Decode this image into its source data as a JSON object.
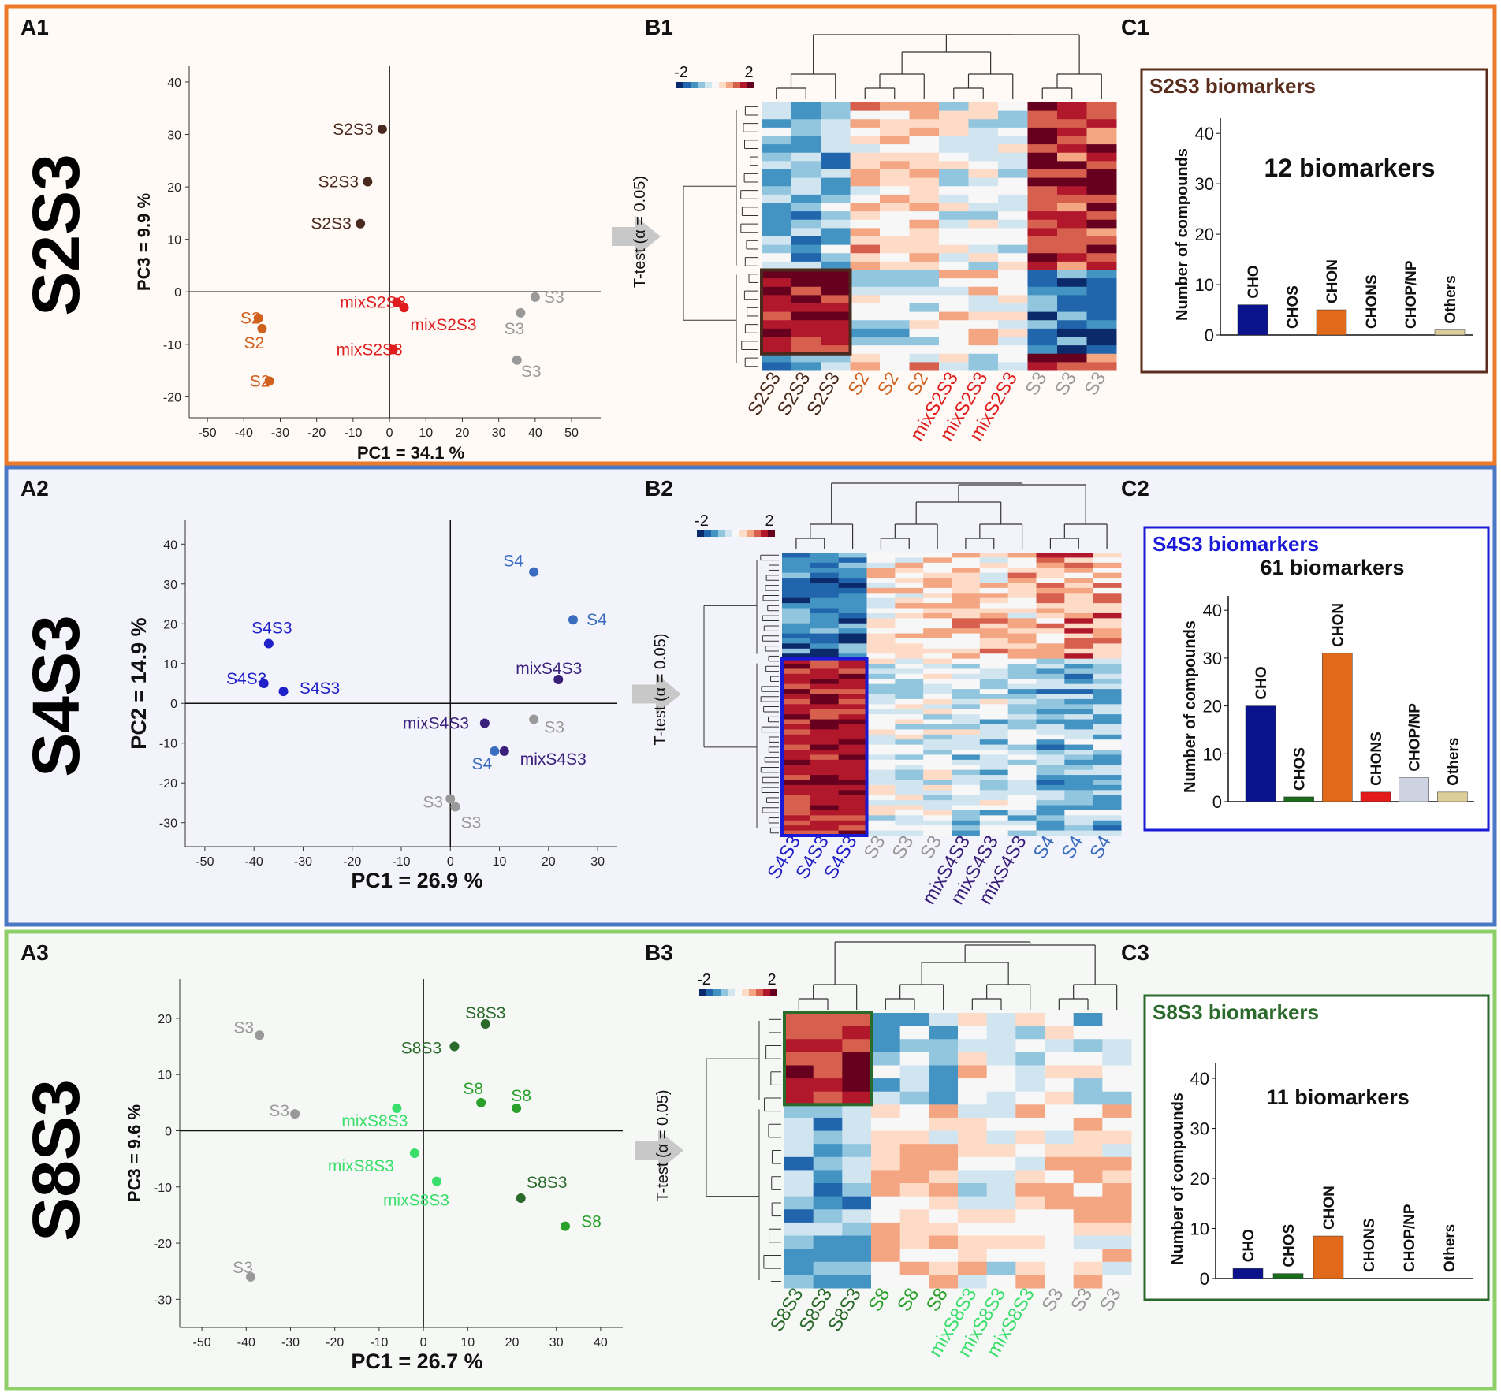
{
  "heatmap_scale": {
    "min_label": "-2",
    "max_label": "2"
  },
  "panels": [
    {
      "id": "S2S3",
      "vertical_title": "S2S3",
      "border_color": "#ec7a2a",
      "bg_color": "#fffaf6",
      "labels": {
        "a": "A1",
        "b": "B1",
        "c": "C1"
      },
      "ttest_label": "T-test (α = 0.05)",
      "chart_data": [
        {
          "type": "scatter",
          "xlabel": "PC1 = 34.1 %",
          "ylabel": "PC3 = 9.9 %",
          "xlim": [
            -55,
            58
          ],
          "ylim": [
            -24,
            43
          ],
          "xticks": [
            -50,
            -40,
            -30,
            -20,
            -10,
            0,
            10,
            20,
            30,
            40,
            50
          ],
          "yticks": [
            -20,
            -10,
            0,
            10,
            20,
            30,
            40
          ],
          "points": [
            {
              "x": -2,
              "y": 31,
              "label": "S2S3",
              "color": "#4a2a1e",
              "lx": -37,
              "ly": 0
            },
            {
              "x": -6,
              "y": 21,
              "label": "S2S3",
              "color": "#4a2a1e",
              "lx": -37,
              "ly": 0
            },
            {
              "x": -8,
              "y": 13,
              "label": "S2S3",
              "color": "#4a2a1e",
              "lx": -37,
              "ly": 0
            },
            {
              "x": -36,
              "y": -5,
              "label": "S2",
              "color": "#d0601e",
              "lx": -10,
              "ly": 0
            },
            {
              "x": -35,
              "y": -7,
              "label": "S2",
              "color": "#d0601e",
              "lx": -10,
              "ly": 18
            },
            {
              "x": -33,
              "y": -17,
              "label": "S2",
              "color": "#d0601e",
              "lx": -12,
              "ly": 0
            },
            {
              "x": 2,
              "y": -2,
              "label": "mixS2S3",
              "color": "#e01d1d",
              "lx": -30,
              "ly": 0
            },
            {
              "x": 4,
              "y": -3,
              "label": "mixS2S3",
              "color": "#e01d1d",
              "lx": 50,
              "ly": 22
            },
            {
              "x": 1,
              "y": -11,
              "label": "mixS2S3",
              "color": "#e01d1d",
              "lx": -30,
              "ly": 0
            },
            {
              "x": 40,
              "y": -1,
              "label": "S3",
              "color": "#999999",
              "lx": 24,
              "ly": 0
            },
            {
              "x": 36,
              "y": -4,
              "label": "S3",
              "color": "#999999",
              "lx": -8,
              "ly": 20
            },
            {
              "x": 35,
              "y": -13,
              "label": "S3",
              "color": "#999999",
              "lx": 18,
              "ly": 14
            }
          ]
        },
        {
          "type": "heatmap",
          "rows": 32,
          "columns": [
            "S2S3",
            "S2S3",
            "S2S3",
            "S2",
            "S2",
            "S2",
            "mixS2S3",
            "mixS2S3",
            "mixS2S3",
            "S3",
            "S3",
            "S3"
          ],
          "column_colors": [
            "#4a2a1e",
            "#4a2a1e",
            "#4a2a1e",
            "#d0601e",
            "#d0601e",
            "#d0601e",
            "#e01d1d",
            "#e01d1d",
            "#e01d1d",
            "#999999",
            "#999999",
            "#999999"
          ],
          "highlight": {
            "row_start": 20,
            "row_end": 29,
            "col_start": 0,
            "col_end": 2,
            "color": "#4a2a1e"
          }
        },
        {
          "type": "bar",
          "box_title": "S2S3 biomarkers",
          "title_color": "#5a2d1c",
          "box_border": "#5a2d1c",
          "annotation": "12 biomarkers",
          "ylabel": "Number of compounds",
          "ylim": [
            0,
            43
          ],
          "yticks": [
            0,
            10,
            20,
            30,
            40
          ],
          "categories": [
            "CHO",
            "CHOS",
            "CHON",
            "CHONS",
            "CHOP/NP",
            "Others"
          ],
          "values": [
            6,
            0,
            5,
            0,
            0,
            1
          ],
          "colors": [
            "#0a138c",
            "#1a6b1a",
            "#e06a1a",
            "#e21a1a",
            "#cdd3e0",
            "#dccd9a"
          ]
        }
      ]
    },
    {
      "id": "S4S3",
      "vertical_title": "S4S3",
      "border_color": "#4a78c4",
      "bg_color": "#f3f3fb",
      "labels": {
        "a": "A2",
        "b": "B2",
        "c": "C2"
      },
      "ttest_label": "T-test (α = 0.05)",
      "chart_data": [
        {
          "type": "scatter",
          "xlabel": "PC1 = 26.9 %",
          "ylabel": "PC2 = 14.9 %",
          "xlim": [
            -54,
            34
          ],
          "ylim": [
            -36,
            46
          ],
          "xticks": [
            -50,
            -40,
            -30,
            -20,
            -10,
            0,
            10,
            20,
            30
          ],
          "yticks": [
            -30,
            -20,
            -10,
            0,
            10,
            20,
            30,
            40
          ],
          "points": [
            {
              "x": -37,
              "y": 15,
              "label": "S4S3",
              "color": "#2020c8",
              "lx": 4,
              "ly": -20
            },
            {
              "x": -38,
              "y": 5,
              "label": "S4S3",
              "color": "#2020c8",
              "lx": -22,
              "ly": -6
            },
            {
              "x": -34,
              "y": 3,
              "label": "S4S3",
              "color": "#2020c8",
              "lx": 46,
              "ly": -4
            },
            {
              "x": 17,
              "y": 33,
              "label": "S4",
              "color": "#3a6cc0",
              "lx": -26,
              "ly": -14
            },
            {
              "x": 25,
              "y": 21,
              "label": "S4",
              "color": "#3a6cc0",
              "lx": 30,
              "ly": 0
            },
            {
              "x": 22,
              "y": 6,
              "label": "mixS4S3",
              "color": "#3a207a",
              "lx": -12,
              "ly": -14
            },
            {
              "x": 7,
              "y": -5,
              "label": "mixS4S3",
              "color": "#3a207a",
              "lx": -62,
              "ly": 0
            },
            {
              "x": 11,
              "y": -12,
              "label": "mixS4S3",
              "color": "#3a207a",
              "lx": 62,
              "ly": 10
            },
            {
              "x": 9,
              "y": -12,
              "label": "S4",
              "color": "#3a6cc0",
              "lx": -16,
              "ly": 16
            },
            {
              "x": 17,
              "y": -4,
              "label": "S3",
              "color": "#999999",
              "lx": 26,
              "ly": 10
            },
            {
              "x": 0,
              "y": -24,
              "label": "S3",
              "color": "#999999",
              "lx": -22,
              "ly": 4
            },
            {
              "x": 1,
              "y": -26,
              "label": "S3",
              "color": "#999999",
              "lx": 20,
              "ly": 20
            }
          ]
        },
        {
          "type": "heatmap",
          "rows": 56,
          "columns": [
            "S4S3",
            "S4S3",
            "S4S3",
            "S3",
            "S3",
            "S3",
            "mixS4S3",
            "mixS4S3",
            "mixS4S3",
            "S4",
            "S4",
            "S4"
          ],
          "column_colors": [
            "#2020c8",
            "#2020c8",
            "#2020c8",
            "#999999",
            "#999999",
            "#999999",
            "#3a207a",
            "#3a207a",
            "#3a207a",
            "#3a6cc0",
            "#3a6cc0",
            "#3a6cc0"
          ],
          "highlight": {
            "row_start": 21,
            "row_end": 55,
            "col_start": 0,
            "col_end": 2,
            "color": "#1a1ad6"
          }
        },
        {
          "type": "bar",
          "box_title": "S4S3 biomarkers",
          "title_color": "#1a1ad6",
          "box_border": "#1a1ad6",
          "annotation": "61 biomarkers",
          "ylabel": "Number of compounds",
          "ylim": [
            0,
            43
          ],
          "yticks": [
            0,
            10,
            20,
            30,
            40
          ],
          "categories": [
            "CHO",
            "CHOS",
            "CHON",
            "CHONS",
            "CHOP/NP",
            "Others"
          ],
          "values": [
            20,
            1,
            31,
            2,
            5,
            2
          ],
          "colors": [
            "#0a138c",
            "#1a6b1a",
            "#e06a1a",
            "#e21a1a",
            "#cdd3e0",
            "#dccd9a"
          ]
        }
      ]
    },
    {
      "id": "S8S3",
      "vertical_title": "S8S3",
      "border_color": "#8fcf6a",
      "bg_color": "#f6f8f6",
      "labels": {
        "a": "A3",
        "b": "B3",
        "c": "C3"
      },
      "ttest_label": "T-test (α = 0.05)",
      "chart_data": [
        {
          "type": "scatter",
          "xlabel": "PC1 = 26.7 %",
          "ylabel": "PC3 = 9.6 %",
          "xlim": [
            -55,
            45
          ],
          "ylim": [
            -35,
            27
          ],
          "xticks": [
            -50,
            -40,
            -30,
            -20,
            -10,
            0,
            10,
            20,
            30,
            40
          ],
          "yticks": [
            -30,
            -20,
            -10,
            0,
            10,
            20
          ],
          "points": [
            {
              "x": -37,
              "y": 17,
              "label": "S3",
              "color": "#999999",
              "lx": -20,
              "ly": -10
            },
            {
              "x": -29,
              "y": 3,
              "label": "S3",
              "color": "#999999",
              "lx": -20,
              "ly": -4
            },
            {
              "x": -39,
              "y": -26,
              "label": "S3",
              "color": "#999999",
              "lx": -10,
              "ly": -12
            },
            {
              "x": 14,
              "y": 19,
              "label": "S8S3",
              "color": "#2a6a2a",
              "lx": 0,
              "ly": -14
            },
            {
              "x": 7,
              "y": 15,
              "label": "S8S3",
              "color": "#2a6a2a",
              "lx": -42,
              "ly": 2
            },
            {
              "x": 22,
              "y": -12,
              "label": "S8S3",
              "color": "#2a6a2a",
              "lx": 33,
              "ly": -20
            },
            {
              "x": 13,
              "y": 5,
              "label": "S8",
              "color": "#2aa02a",
              "lx": -10,
              "ly": -18
            },
            {
              "x": 21,
              "y": 4,
              "label": "S8",
              "color": "#2aa02a",
              "lx": 6,
              "ly": -16
            },
            {
              "x": 32,
              "y": -17,
              "label": "S8",
              "color": "#2aa02a",
              "lx": 33,
              "ly": -6
            },
            {
              "x": -6,
              "y": 4,
              "label": "mixS8S3",
              "color": "#3ade6a",
              "lx": -28,
              "ly": 16
            },
            {
              "x": -2,
              "y": -4,
              "label": "mixS8S3",
              "color": "#3ade6a",
              "lx": -68,
              "ly": 16
            },
            {
              "x": 3,
              "y": -9,
              "label": "mixS8S3",
              "color": "#3ade6a",
              "lx": -26,
              "ly": 24
            }
          ]
        },
        {
          "type": "heatmap",
          "rows": 21,
          "columns": [
            "S8S3",
            "S8S3",
            "S8S3",
            "S8",
            "S8",
            "S8",
            "mixS8S3",
            "mixS8S3",
            "mixS8S3",
            "S3",
            "S3",
            "S3"
          ],
          "column_colors": [
            "#2a6a2a",
            "#2a6a2a",
            "#2a6a2a",
            "#2aa02a",
            "#2aa02a",
            "#2aa02a",
            "#3ade6a",
            "#3ade6a",
            "#3ade6a",
            "#999999",
            "#999999",
            "#999999"
          ],
          "highlight": {
            "row_start": 0,
            "row_end": 6,
            "col_start": 0,
            "col_end": 2,
            "color": "#2a6a2a"
          }
        },
        {
          "type": "bar",
          "box_title": "S8S3 biomarkers",
          "title_color": "#2a6a2a",
          "box_border": "#2a6a2a",
          "annotation": "11 biomarkers",
          "ylabel": "Number of compounds",
          "ylim": [
            0,
            43
          ],
          "yticks": [
            0,
            10,
            20,
            30,
            40
          ],
          "categories": [
            "CHO",
            "CHOS",
            "CHON",
            "CHONS",
            "CHOP/NP",
            "Others"
          ],
          "values": [
            2,
            1,
            8.5,
            0,
            0,
            0
          ],
          "colors": [
            "#0a138c",
            "#1a6b1a",
            "#e06a1a",
            "#e21a1a",
            "#cdd3e0",
            "#dccd9a"
          ]
        }
      ]
    }
  ]
}
